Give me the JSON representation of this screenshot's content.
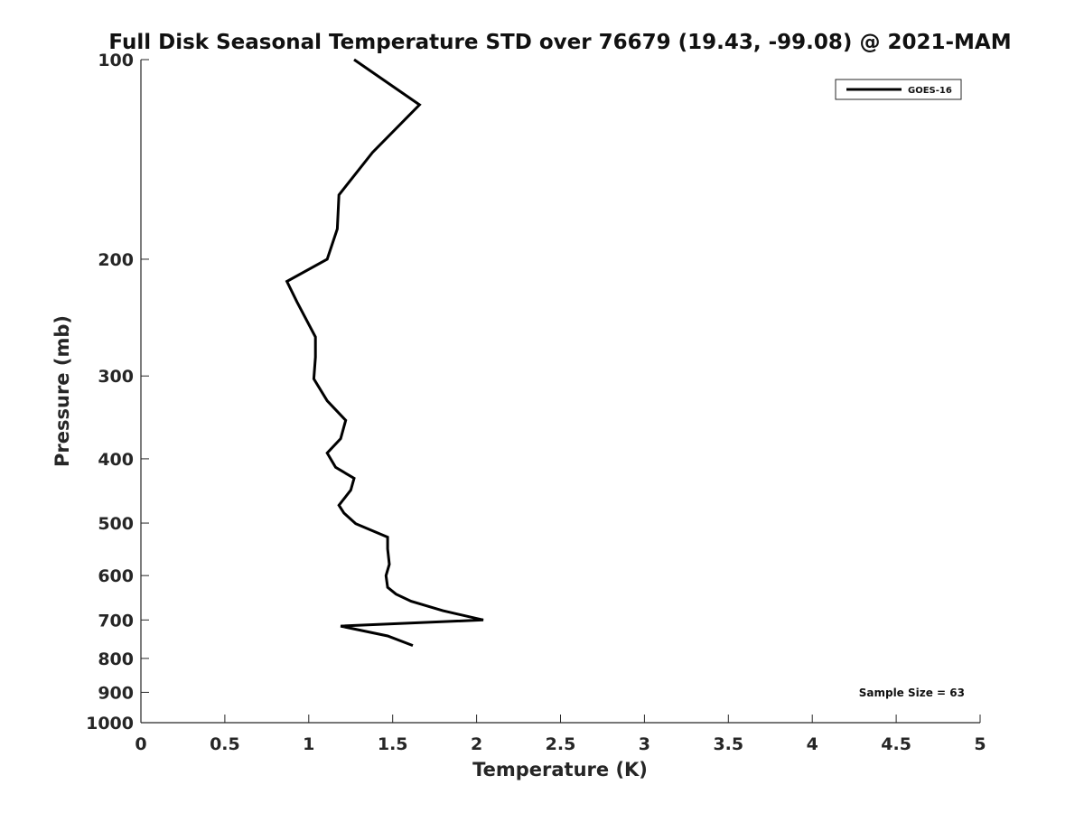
{
  "chart_data": {
    "type": "line",
    "title": "Full Disk Seasonal Temperature STD over 76679 (19.43, -99.08) @ 2021-MAM",
    "xlabel": "Temperature (K)",
    "ylabel": "Pressure (mb)",
    "xlim": [
      0,
      5
    ],
    "ylim": [
      100,
      1000
    ],
    "y_scale": "log",
    "y_reversed": true,
    "x_ticks": [
      "0",
      "0.5",
      "1",
      "1.5",
      "2",
      "2.5",
      "3",
      "3.5",
      "4",
      "4.5",
      "5"
    ],
    "y_ticks": [
      "100",
      "200",
      "300",
      "400",
      "500",
      "600",
      "700",
      "800",
      "900",
      "1000"
    ],
    "grid": false,
    "legend_position": "top-right",
    "series": [
      {
        "name": "GOES-16",
        "color": "#000000",
        "x": [
          1.27,
          1.66,
          1.38,
          1.18,
          1.17,
          1.11,
          0.87,
          0.93,
          1.04,
          1.04,
          1.03,
          1.11,
          1.22,
          1.19,
          1.11,
          1.16,
          1.27,
          1.25,
          1.18,
          1.21,
          1.28,
          1.47,
          1.47,
          1.48,
          1.46,
          1.47,
          1.52,
          1.61,
          1.8,
          2.04,
          1.19,
          1.47,
          1.62
        ],
        "y": [
          100,
          117,
          138,
          160,
          180,
          200,
          216,
          232,
          262,
          281,
          303,
          327,
          350,
          373,
          392,
          412,
          428,
          446,
          470,
          483,
          501,
          525,
          547,
          577,
          600,
          625,
          640,
          656,
          678,
          700,
          715,
          740,
          765
        ]
      }
    ],
    "annotations": [
      "Sample Size = 63"
    ]
  }
}
